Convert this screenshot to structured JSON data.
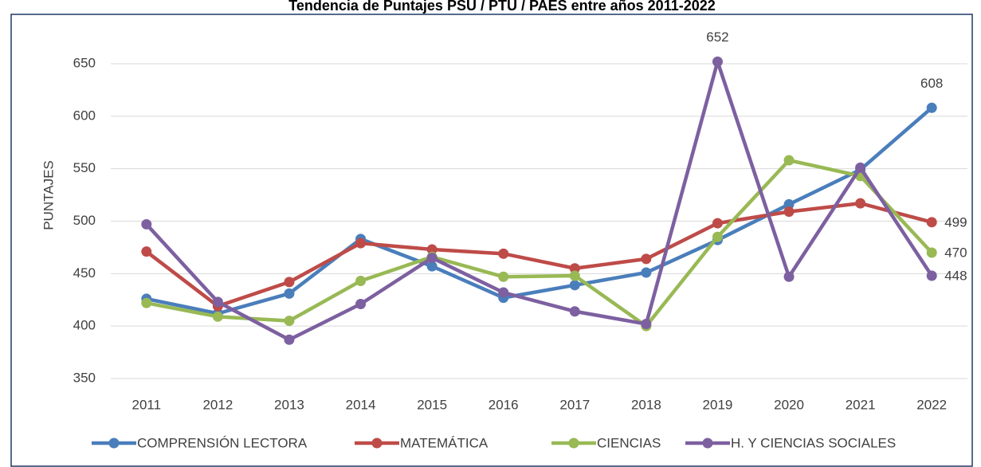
{
  "chart_data": {
    "type": "line",
    "title": "Tendencia de Puntajes PSU / PTU / PAES entre años 2011-2022",
    "y_label": "PUNTAJES",
    "categories": [
      "2011",
      "2012",
      "2013",
      "2014",
      "2015",
      "2016",
      "2017",
      "2018",
      "2019",
      "2020",
      "2021",
      "2022"
    ],
    "series": [
      {
        "name": "COMPRENSIÓN LECTORA",
        "color": "#4a7ebb",
        "values": [
          426,
          412,
          431,
          483,
          457,
          427,
          439,
          451,
          482,
          516,
          549,
          608
        ],
        "labeled_points": [
          11
        ]
      },
      {
        "name": "MATEMÁTICA",
        "color": "#be4b48",
        "values": [
          471,
          419,
          442,
          479,
          473,
          469,
          455,
          464,
          498,
          509,
          517,
          499
        ],
        "labeled_points": [
          11
        ]
      },
      {
        "name": "CIENCIAS",
        "color": "#98b954",
        "values": [
          422,
          409,
          405,
          443,
          466,
          447,
          448,
          400,
          485,
          558,
          543,
          470
        ],
        "labeled_points": [
          11
        ]
      },
      {
        "name": "H. Y CIENCIAS SOCIALES",
        "color": "#7d60a0",
        "values": [
          497,
          423,
          387,
          421,
          465,
          432,
          414,
          402,
          652,
          447,
          551,
          448
        ],
        "labeled_points": [
          8,
          11
        ]
      }
    ],
    "ylim": [
      350,
      650
    ],
    "yticks": [
      350,
      400,
      450,
      500,
      550,
      600,
      650
    ],
    "grid": true,
    "legend": "bottom"
  }
}
